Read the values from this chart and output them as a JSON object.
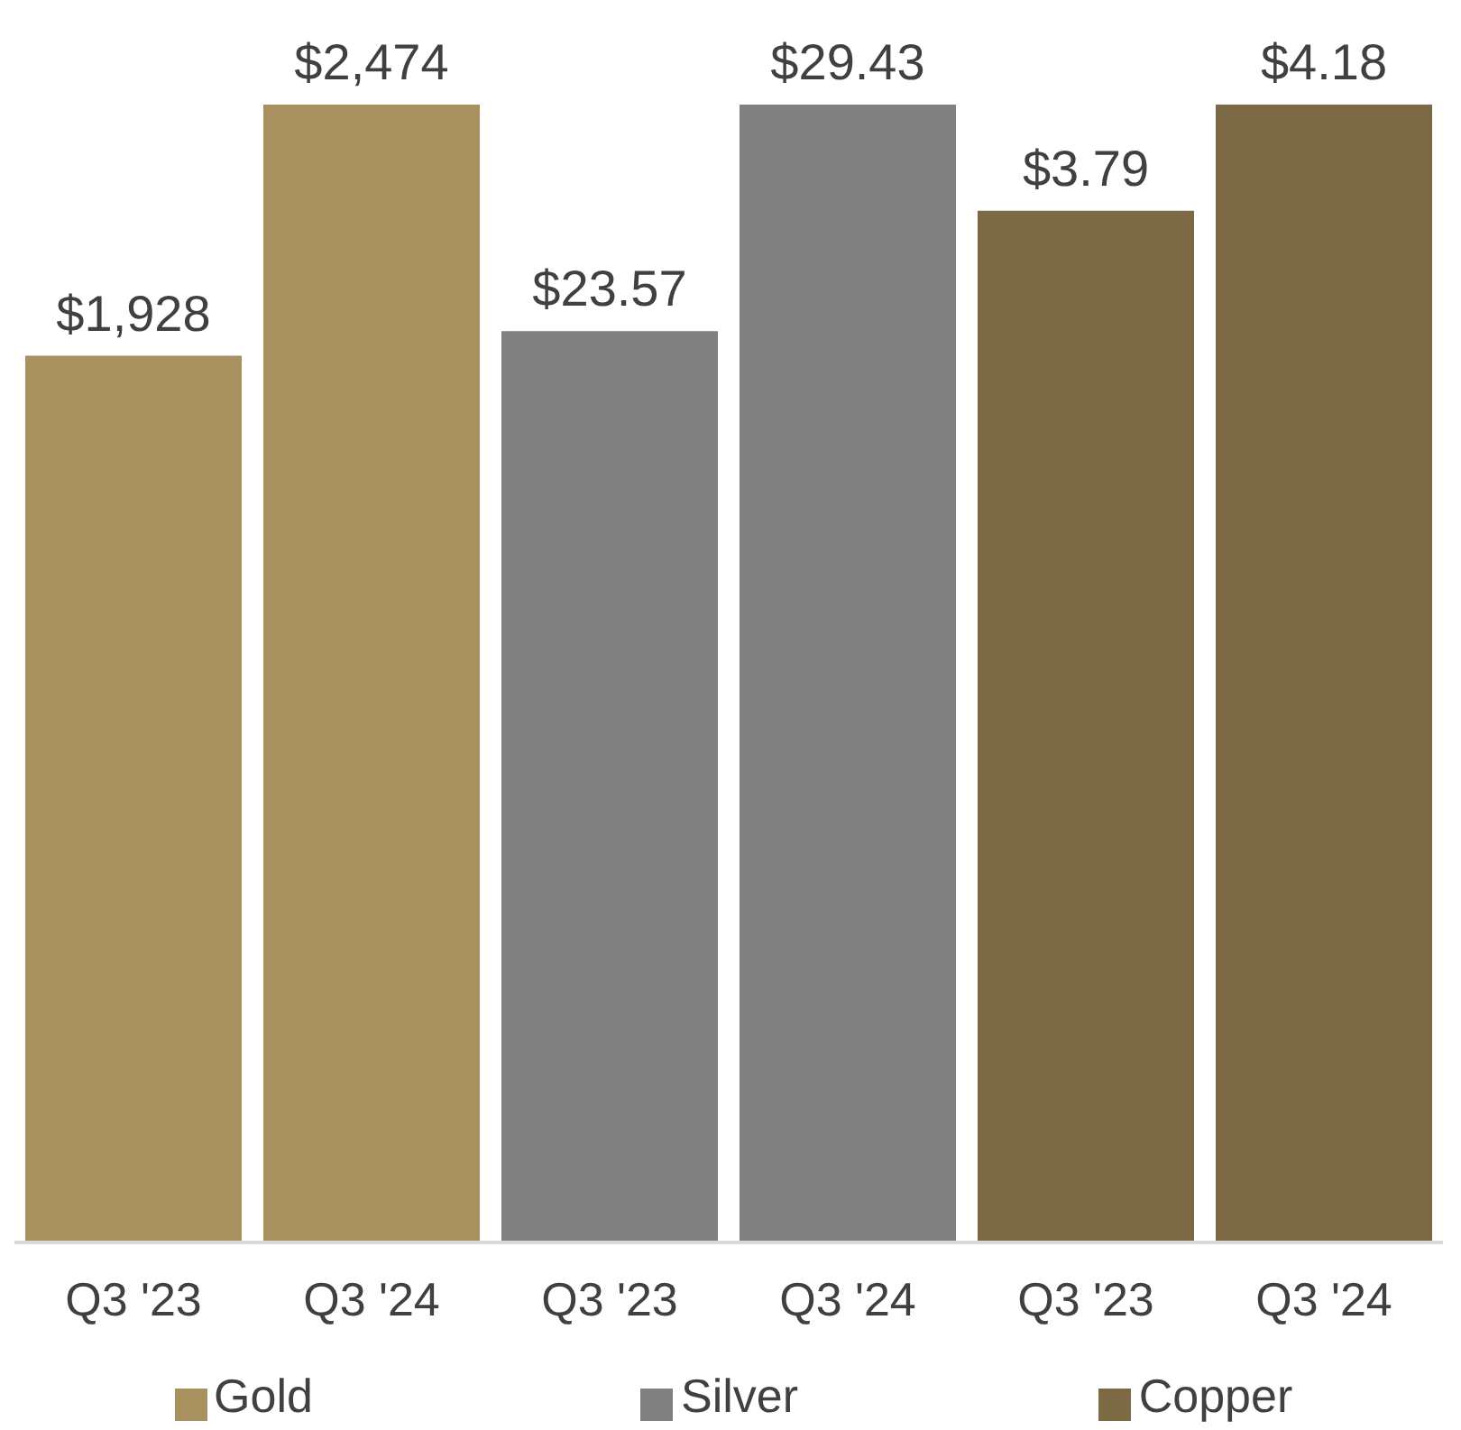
{
  "chart_data": [
    {
      "type": "bar",
      "categories": [
        "Q3 '23",
        "Q3 '24"
      ],
      "legend": "bottom",
      "series": [
        {
          "name": "Gold",
          "color": "#a8915e",
          "values": [
            1928,
            2474
          ],
          "value_labels": [
            "$1,928",
            "$2,474"
          ]
        }
      ]
    },
    {
      "type": "bar",
      "categories": [
        "Q3 '23",
        "Q3 '24"
      ],
      "legend": "bottom",
      "series": [
        {
          "name": "Silver",
          "color": "#808080",
          "values": [
            23.57,
            29.43
          ],
          "value_labels": [
            "$23.57",
            "$29.43"
          ]
        }
      ]
    },
    {
      "type": "bar",
      "categories": [
        "Q3 '23",
        "Q3 '24"
      ],
      "legend": "bottom",
      "series": [
        {
          "name": "Copper",
          "color": "#7b6a43",
          "values": [
            3.79,
            4.18
          ],
          "value_labels": [
            "$3.79",
            "$4.18"
          ]
        }
      ]
    }
  ]
}
